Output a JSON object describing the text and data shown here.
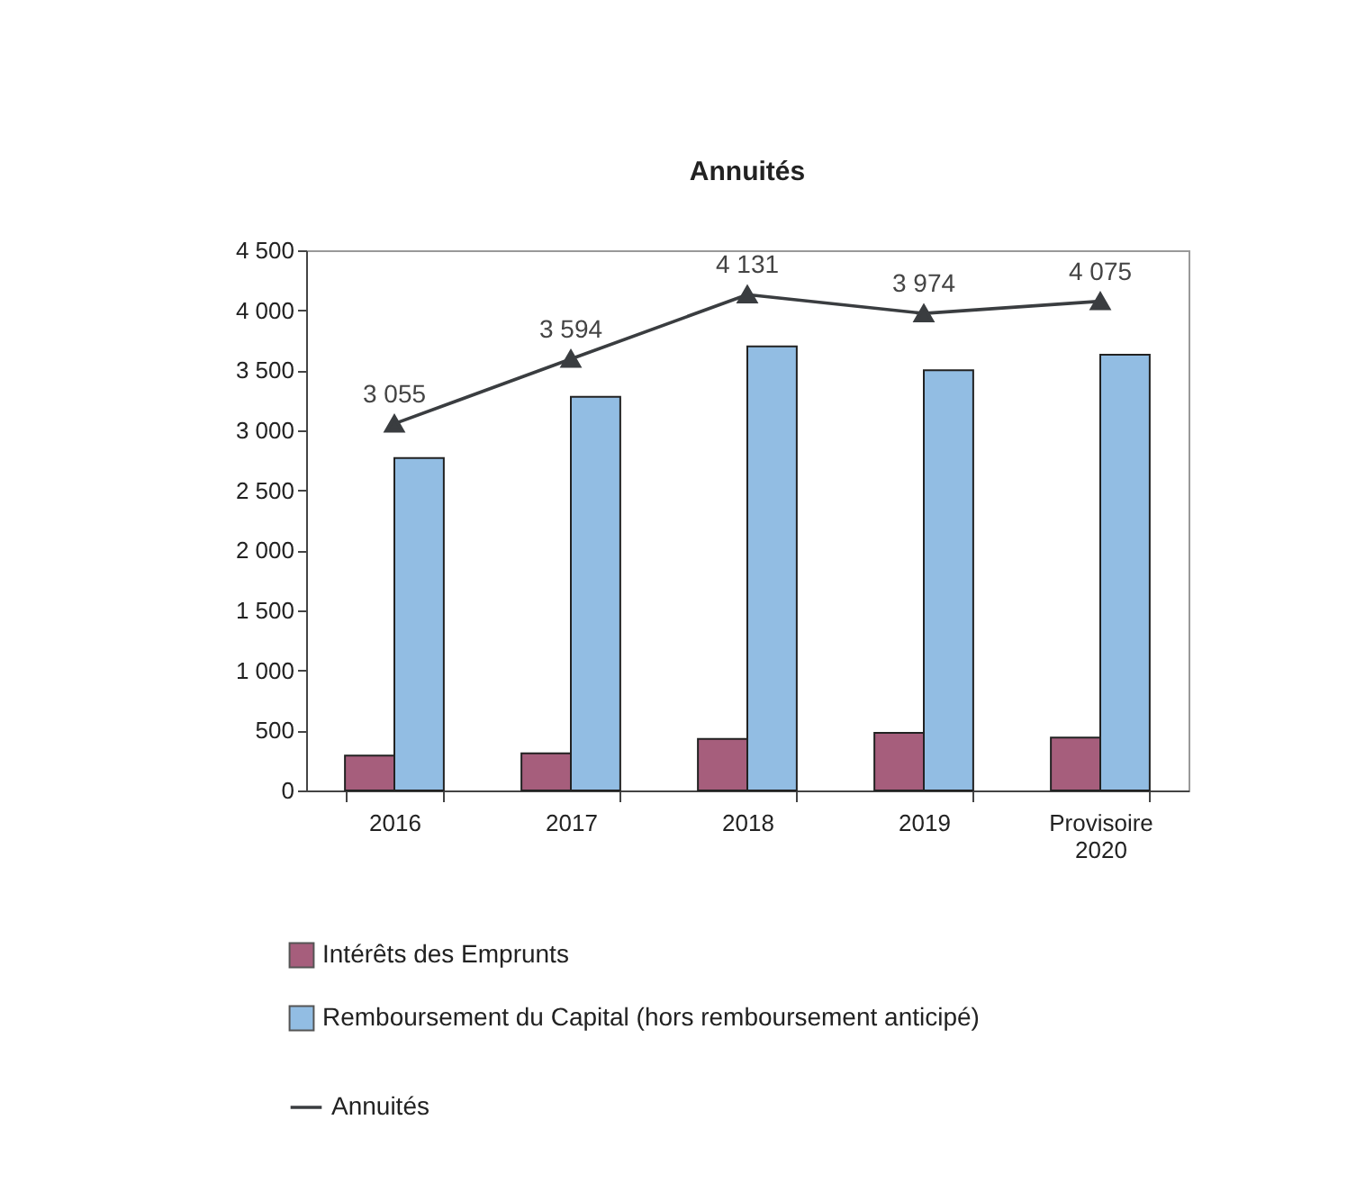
{
  "chart_data": {
    "type": "bar",
    "title": "Annuités",
    "categories": [
      "2016",
      "2017",
      "2018",
      "2019",
      "Provisoire 2020"
    ],
    "series": [
      {
        "name": "Intérêts des Emprunts",
        "color": "#a65e7c",
        "values": [
          290,
          310,
          430,
          480,
          440
        ]
      },
      {
        "name": "Remboursement du Capital (hors remboursement anticipé)",
        "color": "#92bde3",
        "values": [
          2770,
          3280,
          3700,
          3500,
          3630
        ]
      },
      {
        "name": "Annuités",
        "type": "line",
        "color": "#3a3d40",
        "marker": "triangle",
        "values": [
          3055,
          3594,
          4131,
          3974,
          4075
        ],
        "value_labels": [
          "3 055",
          "3 594",
          "4 131",
          "3 974",
          "4 075"
        ]
      }
    ],
    "ylim": [
      0,
      4500
    ],
    "yticks": [
      {
        "value": 0,
        "label": "0"
      },
      {
        "value": 500,
        "label": "500"
      },
      {
        "value": 1000,
        "label": "1 000"
      },
      {
        "value": 1500,
        "label": "1 500"
      },
      {
        "value": 2000,
        "label": "2 000"
      },
      {
        "value": 2500,
        "label": "2 500"
      },
      {
        "value": 3000,
        "label": "3 000"
      },
      {
        "value": 3500,
        "label": "3 500"
      },
      {
        "value": 4000,
        "label": "4 000"
      },
      {
        "value": 4500,
        "label": "4 500"
      }
    ],
    "grid": false,
    "legend": "bottom"
  }
}
